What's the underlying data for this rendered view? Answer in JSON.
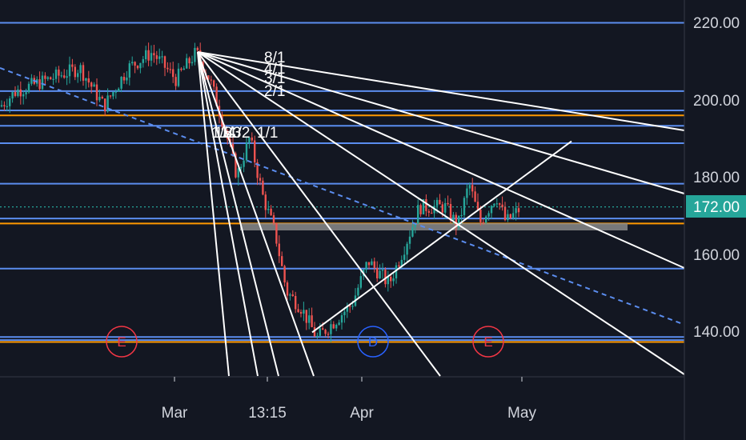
{
  "chart_data": {
    "type": "candlestick",
    "title": "",
    "xlabel": "",
    "ylabel": "",
    "ylim": [
      124,
      224
    ],
    "grid": false,
    "y_ticks": [
      {
        "label": "220.00",
        "value": 220
      },
      {
        "label": "200.00",
        "value": 200
      },
      {
        "label": "180.00",
        "value": 180
      },
      {
        "label": "160.00",
        "value": 160
      },
      {
        "label": "140.00",
        "value": 140
      }
    ],
    "x_ticks": [
      "Mar",
      "13:15",
      "Apr",
      "May"
    ],
    "last_price": {
      "label": "172.00",
      "value": 172.0
    },
    "horizontal_levels_blue": [
      219.7,
      202.0,
      197.0,
      193.0,
      188.5,
      178.0,
      169.0,
      156.0,
      138.3,
      137.5
    ],
    "horizontal_levels_orange": [
      195.7,
      167.7,
      137.0
    ],
    "fan_labels": [
      "8/1",
      "4/1",
      "3/1",
      "2/1",
      "1/1",
      "1/2",
      "1/3",
      "1/4",
      "1/8"
    ],
    "event_markers": [
      {
        "letter": "E",
        "color": "#f23645"
      },
      {
        "letter": "D",
        "color": "#2962ff"
      },
      {
        "letter": "E",
        "color": "#f23645"
      }
    ],
    "colors": {
      "up": "#26a69a",
      "down": "#ef5350",
      "level_blue": "#5b8def",
      "level_orange": "#ff9800",
      "fan": "#ffffff",
      "last_price_line": "#26a69a",
      "highlight_bar": "#9e9e9e"
    }
  }
}
